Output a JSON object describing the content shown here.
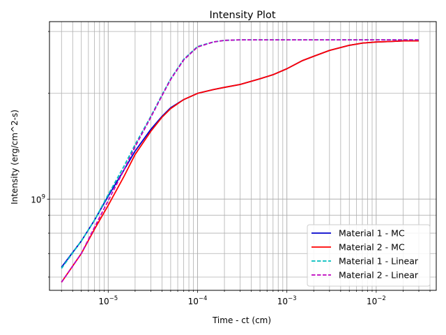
{
  "chart_data": {
    "type": "line",
    "title": "Intensity Plot",
    "xlabel": "Time - ct (cm)",
    "ylabel": "Intensity (erg/cm^2-s)",
    "xscale": "log",
    "yscale": "log",
    "xlim": [
      2.2e-06,
      0.047
    ],
    "ylim": [
      550000000.0,
      3200000000.0
    ],
    "grid": true,
    "legend_position": "lower-right",
    "x_ticks": [
      {
        "value": 1e-05,
        "base": "10",
        "exp": "−5"
      },
      {
        "value": 0.0001,
        "base": "10",
        "exp": "−4"
      },
      {
        "value": 0.001,
        "base": "10",
        "exp": "−3"
      },
      {
        "value": 0.01,
        "base": "10",
        "exp": "−2"
      }
    ],
    "y_ticks": [
      {
        "value": 1000000000.0,
        "base": "10",
        "exp": "9"
      }
    ],
    "series": [
      {
        "name": "Material 1 - MC",
        "color": "#0000cc",
        "style": "solid",
        "x": [
          3e-06,
          5e-06,
          7e-06,
          1e-05,
          1.5e-05,
          2e-05,
          3e-05,
          4e-05,
          5e-05,
          7e-05,
          0.0001,
          0.00015,
          0.0002,
          0.0003,
          0.0005,
          0.0007,
          0.001,
          0.0015,
          0.002,
          0.003,
          0.005,
          0.007,
          0.01,
          0.015,
          0.02,
          0.03
        ],
        "y": [
          640000000.0,
          760000000.0,
          870000000.0,
          1020000000.0,
          1210000000.0,
          1370000000.0,
          1580000000.0,
          1720000000.0,
          1820000000.0,
          1920000000.0,
          2000000000.0,
          2050000000.0,
          2080000000.0,
          2120000000.0,
          2200000000.0,
          2260000000.0,
          2350000000.0,
          2480000000.0,
          2550000000.0,
          2650000000.0,
          2740000000.0,
          2780000000.0,
          2800000000.0,
          2810000000.0,
          2820000000.0,
          2820000000.0
        ]
      },
      {
        "name": "Material 2 - MC",
        "color": "#ff0000",
        "style": "solid",
        "x": [
          3e-06,
          5e-06,
          7e-06,
          1e-05,
          1.5e-05,
          2e-05,
          3e-05,
          4e-05,
          5e-05,
          7e-05,
          0.0001,
          0.00015,
          0.0002,
          0.0003,
          0.0005,
          0.0007,
          0.001,
          0.0015,
          0.002,
          0.003,
          0.005,
          0.007,
          0.01,
          0.015,
          0.02,
          0.03
        ],
        "y": [
          580000000.0,
          700000000.0,
          820000000.0,
          960000000.0,
          1160000000.0,
          1340000000.0,
          1560000000.0,
          1710000000.0,
          1810000000.0,
          1920000000.0,
          2000000000.0,
          2050000000.0,
          2080000000.0,
          2120000000.0,
          2200000000.0,
          2260000000.0,
          2350000000.0,
          2480000000.0,
          2550000000.0,
          2650000000.0,
          2740000000.0,
          2780000000.0,
          2800000000.0,
          2810000000.0,
          2820000000.0,
          2820000000.0
        ]
      },
      {
        "name": "Material 1 - Linear",
        "color": "#00bfbf",
        "style": "dashed",
        "x": [
          3e-06,
          5e-06,
          7e-06,
          1e-05,
          1.5e-05,
          2e-05,
          3e-05,
          4e-05,
          5e-05,
          7e-05,
          0.0001,
          0.00015,
          0.0002,
          0.0003,
          0.0005,
          0.001,
          0.003,
          0.01,
          0.03
        ],
        "y": [
          635000000.0,
          760000000.0,
          870000000.0,
          1030000000.0,
          1240000000.0,
          1430000000.0,
          1720000000.0,
          1980000000.0,
          2200000000.0,
          2500000000.0,
          2720000000.0,
          2800000000.0,
          2830000000.0,
          2840000000.0,
          2840000000.0,
          2840000000.0,
          2840000000.0,
          2840000000.0,
          2840000000.0
        ]
      },
      {
        "name": "Material 2 - Linear",
        "color": "#bf00bf",
        "style": "dashed",
        "x": [
          3e-06,
          5e-06,
          7e-06,
          1e-05,
          1.5e-05,
          2e-05,
          3e-05,
          4e-05,
          5e-05,
          7e-05,
          0.0001,
          0.00015,
          0.0002,
          0.0003,
          0.0005,
          0.001,
          0.003,
          0.01,
          0.03
        ],
        "y": [
          580000000.0,
          700000000.0,
          830000000.0,
          990000000.0,
          1210000000.0,
          1410000000.0,
          1710000000.0,
          1970000000.0,
          2190000000.0,
          2490000000.0,
          2710000000.0,
          2800000000.0,
          2830000000.0,
          2840000000.0,
          2840000000.0,
          2840000000.0,
          2840000000.0,
          2840000000.0,
          2840000000.0
        ]
      }
    ]
  }
}
